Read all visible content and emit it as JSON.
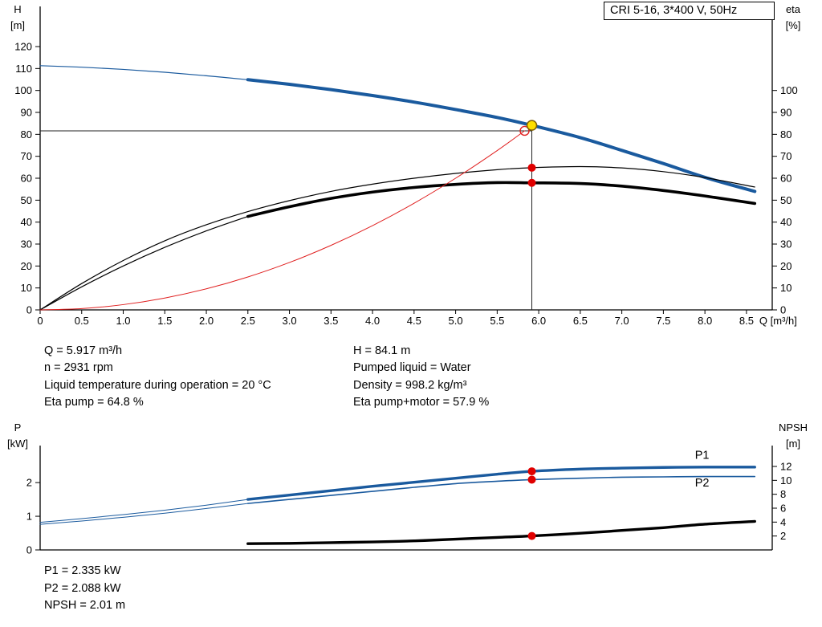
{
  "title_box": {
    "label": "CRI 5-16, 3*400 V, 50Hz"
  },
  "colors": {
    "curve_blue": "#1a5a9e",
    "curve_black": "#000000",
    "curve_red": "#e02020",
    "marker_red": "#e00000",
    "duty_point_fill": "#ffe000",
    "duty_point_stroke": "#806000",
    "axis": "#000000"
  },
  "info_top_left": [
    "Q = 5.917 m³/h",
    "n = 2931 rpm",
    "Liquid temperature during operation = 20 °C",
    "Eta pump = 64.8 %"
  ],
  "info_top_right": [
    "H = 84.1 m",
    "Pumped liquid = Water",
    "Density = 998.2 kg/m³",
    "Eta pump+motor = 57.9 %"
  ],
  "info_bottom": [
    "P1 = 2.335 kW",
    "P2 = 2.088 kW",
    "NPSH = 2.01 m"
  ],
  "chart_data": [
    {
      "type": "line",
      "name": "qh-eta-chart",
      "title": "CRI 5-16, 3*400 V, 50Hz",
      "x": {
        "label": "Q [m³/h]",
        "min": 0,
        "max": 8.81,
        "tick_from": 0,
        "tick_to": 8.5,
        "step": 0.5,
        "show": true
      },
      "y_left": {
        "label": "H",
        "unit": "[m]",
        "min": 0,
        "max": 138.3,
        "tick_from": 0,
        "tick_to": 120,
        "step": 10
      },
      "y_right": {
        "label": "eta",
        "unit": "[%]",
        "min": 0,
        "max": 138.3,
        "tick_from": 0,
        "tick_to": 100,
        "step": 10
      },
      "duty_point": {
        "q": 5.917,
        "h": 84.1,
        "eta_pump": 64.8,
        "eta_pump_motor": 57.9
      },
      "series": [
        {
          "name": "qh-curve-thin",
          "color": "#1a5a9e",
          "width": 1.2,
          "axis": "left",
          "points": [
            [
              0,
              111.3
            ],
            [
              0.5,
              110.6
            ],
            [
              1,
              109.6
            ],
            [
              1.5,
              108.3
            ],
            [
              2,
              106.7
            ],
            [
              2.5,
              104.9
            ]
          ]
        },
        {
          "name": "qh-curve",
          "color": "#1a5a9e",
          "width": 4,
          "axis": "left",
          "points": [
            [
              2.5,
              104.9
            ],
            [
              3,
              102.8
            ],
            [
              3.5,
              100.4
            ],
            [
              4,
              97.7
            ],
            [
              4.5,
              94.7
            ],
            [
              5,
              91.3
            ],
            [
              5.5,
              87.7
            ],
            [
              5.917,
              84.1
            ],
            [
              6.5,
              78.5
            ],
            [
              7,
              72.7
            ],
            [
              7.5,
              66.7
            ],
            [
              8,
              60.4
            ],
            [
              8.6,
              54
            ]
          ]
        },
        {
          "name": "eta-pump-curve",
          "color": "#000000",
          "width": 1.2,
          "axis": "right",
          "points": [
            [
              0,
              0
            ],
            [
              0.5,
              12
            ],
            [
              1,
              22.5
            ],
            [
              1.5,
              31.5
            ],
            [
              2,
              38.8
            ],
            [
              2.5,
              44.8
            ],
            [
              3,
              49.8
            ],
            [
              3.5,
              54
            ],
            [
              4,
              57.3
            ],
            [
              4.5,
              60
            ],
            [
              5,
              62.2
            ],
            [
              5.5,
              63.9
            ],
            [
              5.917,
              64.8
            ],
            [
              6.5,
              65.3
            ],
            [
              7,
              64.7
            ],
            [
              7.5,
              63
            ],
            [
              8,
              60.3
            ],
            [
              8.6,
              56
            ]
          ]
        },
        {
          "name": "eta-pump-motor-thin",
          "color": "#000000",
          "width": 1.2,
          "axis": "right",
          "points": [
            [
              0,
              0
            ],
            [
              0.5,
              10.5
            ],
            [
              1,
              20
            ],
            [
              1.5,
              28.5
            ],
            [
              2,
              36
            ],
            [
              2.5,
              42.6
            ]
          ]
        },
        {
          "name": "eta-pump-motor-curve",
          "color": "#000000",
          "width": 3.6,
          "axis": "right",
          "points": [
            [
              2.5,
              42.6
            ],
            [
              3,
              47
            ],
            [
              3.5,
              50.8
            ],
            [
              4,
              53.7
            ],
            [
              4.5,
              55.8
            ],
            [
              5,
              57.2
            ],
            [
              5.5,
              58
            ],
            [
              5.917,
              57.9
            ],
            [
              6.5,
              57.6
            ],
            [
              7,
              56.4
            ],
            [
              7.5,
              54.4
            ],
            [
              8,
              51.9
            ],
            [
              8.6,
              48.5
            ]
          ]
        },
        {
          "name": "system-curve",
          "color": "#e02020",
          "width": 1,
          "axis": "left",
          "points": [
            [
              0,
              0
            ],
            [
              0.5,
              0.6
            ],
            [
              1,
              2.4
            ],
            [
              1.5,
              5.4
            ],
            [
              2,
              9.6
            ],
            [
              2.5,
              15
            ],
            [
              3,
              21.6
            ],
            [
              3.5,
              29.4
            ],
            [
              4,
              38.4
            ],
            [
              4.5,
              48.6
            ],
            [
              5,
              60
            ],
            [
              5.5,
              72.6
            ],
            [
              5.83,
              81.6
            ]
          ]
        }
      ],
      "ref_lines": [
        {
          "dir": "h",
          "at": 81.6,
          "from": 0,
          "to": 5.917,
          "axis": "left"
        },
        {
          "dir": "v",
          "at": 5.917,
          "from": 0,
          "to": 84.1,
          "axis": "left"
        }
      ],
      "markers": [
        {
          "name": "requested-duty-point",
          "style": "open-red",
          "x": 5.83,
          "y": 81.6,
          "axis": "left"
        },
        {
          "name": "duty-point",
          "style": "yellow",
          "x": 5.917,
          "y": 84.1,
          "axis": "left"
        },
        {
          "name": "eta-pump-point",
          "style": "red",
          "x": 5.917,
          "y": 64.8,
          "axis": "right"
        },
        {
          "name": "eta-pump-motor-point",
          "style": "red",
          "x": 5.917,
          "y": 57.9,
          "axis": "right"
        }
      ]
    },
    {
      "type": "line",
      "name": "power-npsh-chart",
      "x": {
        "min": 0,
        "max": 8.81,
        "show": false
      },
      "y_left": {
        "label": "P",
        "unit": "[kW]",
        "min": 0,
        "max": 3.1,
        "tick_from": 0,
        "tick_to": 2,
        "step": 1
      },
      "y_right": {
        "label": "NPSH",
        "unit": "[m]",
        "min": 0,
        "max": 15,
        "tick_from": 2,
        "tick_to": 12,
        "step": 2
      },
      "series": [
        {
          "name": "p1-curve-thin",
          "color": "#1a5a9e",
          "width": 1,
          "axis": "left",
          "points": [
            [
              0,
              0.82
            ],
            [
              0.5,
              0.93
            ],
            [
              1,
              1.05
            ],
            [
              1.5,
              1.18
            ],
            [
              2,
              1.33
            ],
            [
              2.5,
              1.5
            ]
          ]
        },
        {
          "name": "p1-curve",
          "color": "#1a5a9e",
          "width": 3.4,
          "axis": "left",
          "points": [
            [
              2.5,
              1.5
            ],
            [
              3,
              1.63
            ],
            [
              3.5,
              1.76
            ],
            [
              4,
              1.89
            ],
            [
              4.5,
              2.01
            ],
            [
              5,
              2.13
            ],
            [
              5.5,
              2.25
            ],
            [
              5.917,
              2.335
            ],
            [
              6.5,
              2.4
            ],
            [
              7,
              2.43
            ],
            [
              7.5,
              2.45
            ],
            [
              8,
              2.46
            ],
            [
              8.6,
              2.46
            ]
          ]
        },
        {
          "name": "p2-curve-thin",
          "color": "#1a5a9e",
          "width": 1,
          "axis": "left",
          "points": [
            [
              0,
              0.76
            ],
            [
              0.5,
              0.86
            ],
            [
              1,
              0.97
            ],
            [
              1.5,
              1.09
            ],
            [
              2,
              1.23
            ],
            [
              2.5,
              1.38
            ]
          ]
        },
        {
          "name": "p2-curve",
          "color": "#1a5a9e",
          "width": 1.6,
          "axis": "left",
          "points": [
            [
              2.5,
              1.38
            ],
            [
              3,
              1.5
            ],
            [
              3.5,
              1.62
            ],
            [
              4,
              1.74
            ],
            [
              4.5,
              1.86
            ],
            [
              5,
              1.97
            ],
            [
              5.5,
              2.04
            ],
            [
              5.917,
              2.088
            ],
            [
              6.5,
              2.13
            ],
            [
              7,
              2.16
            ],
            [
              7.5,
              2.17
            ],
            [
              8,
              2.18
            ],
            [
              8.6,
              2.18
            ]
          ]
        },
        {
          "name": "npsh-curve",
          "color": "#000000",
          "width": 3.4,
          "axis": "right",
          "points": [
            [
              2.5,
              0.9
            ],
            [
              3,
              0.95
            ],
            [
              3.5,
              1.05
            ],
            [
              4,
              1.15
            ],
            [
              4.5,
              1.3
            ],
            [
              5,
              1.55
            ],
            [
              5.5,
              1.8
            ],
            [
              5.917,
              2.01
            ],
            [
              6.5,
              2.4
            ],
            [
              7,
              2.8
            ],
            [
              7.5,
              3.2
            ],
            [
              8,
              3.7
            ],
            [
              8.6,
              4.1
            ]
          ]
        }
      ],
      "ref_lines": [],
      "markers": [
        {
          "name": "p1-point",
          "style": "red",
          "x": 5.917,
          "y": 2.335,
          "axis": "left"
        },
        {
          "name": "p2-point",
          "style": "red",
          "x": 5.917,
          "y": 2.088,
          "axis": "left"
        },
        {
          "name": "npsh-point",
          "style": "red",
          "x": 5.917,
          "y": 2.01,
          "axis": "right"
        }
      ],
      "labels": [
        {
          "text": "P1",
          "x": 7.88,
          "y": 2.82
        },
        {
          "text": "P2",
          "x": 7.88,
          "y": 2.0
        }
      ]
    }
  ]
}
